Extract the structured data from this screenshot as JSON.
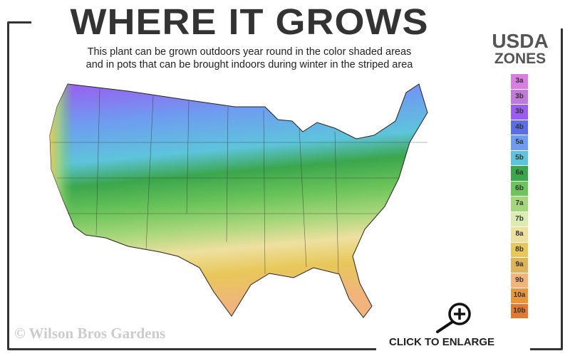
{
  "header": {
    "title": "WHERE IT GROWS",
    "subtitle_line1": "This plant can be grown outdoors year round in the color shaded areas",
    "subtitle_line2": "and in pots that can be brought indoors during winter in the striped area"
  },
  "legend": {
    "title_line1": "USDA",
    "title_line2": "ZONES",
    "zones": [
      {
        "label": "3a",
        "color": "#d77ee0"
      },
      {
        "label": "3b",
        "color": "#c07ad8"
      },
      {
        "label": "3b",
        "color": "#9b5cf0"
      },
      {
        "label": "4b",
        "color": "#5b6ee8"
      },
      {
        "label": "5a",
        "color": "#6e9cf0"
      },
      {
        "label": "5b",
        "color": "#5ec4dc"
      },
      {
        "label": "6a",
        "color": "#3ba64c"
      },
      {
        "label": "6b",
        "color": "#6cc45a"
      },
      {
        "label": "7a",
        "color": "#a6d67a"
      },
      {
        "label": "7b",
        "color": "#dcebb0"
      },
      {
        "label": "8a",
        "color": "#eee0a0"
      },
      {
        "label": "8b",
        "color": "#e8c85a"
      },
      {
        "label": "9a",
        "color": "#dcb45a"
      },
      {
        "label": "9b",
        "color": "#f0b47c"
      },
      {
        "label": "10a",
        "color": "#e8963c"
      },
      {
        "label": "10b",
        "color": "#e07a30"
      }
    ]
  },
  "footer": {
    "watermark": "© Wilson Bros Gardens",
    "enlarge_label": "CLICK TO ENLARGE",
    "enlarge_icon": "magnify-plus-icon"
  }
}
